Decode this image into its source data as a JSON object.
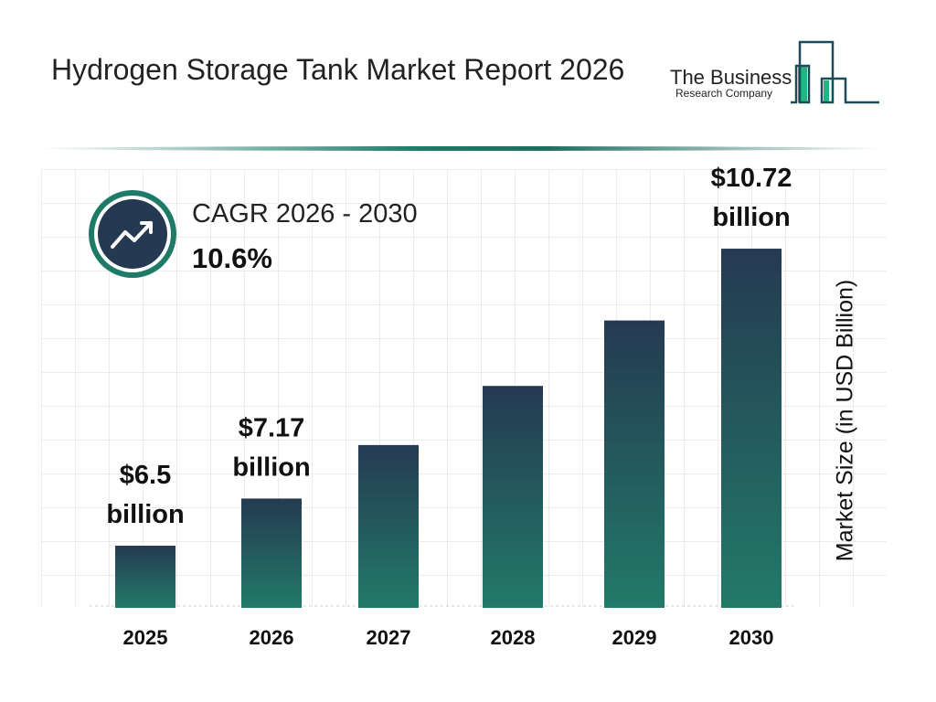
{
  "header": {
    "title": "Hydrogen Storage Tank Market Report 2026"
  },
  "logo": {
    "line1": "The Business",
    "line2": "Research Company"
  },
  "cagr": {
    "label": "CAGR 2026 - 2030",
    "value": "10.6%",
    "icon": "trending-up-icon"
  },
  "colors": {
    "bar_top": "#253a52",
    "bar_bottom": "#227a68",
    "accent": "#1f7a68"
  },
  "chart_data": {
    "type": "bar",
    "title": "Hydrogen Storage Tank Market Report 2026",
    "ylabel": "Market Size (in USD Billion)",
    "xlabel": "",
    "categories": [
      "2025",
      "2026",
      "2027",
      "2028",
      "2029",
      "2030"
    ],
    "values": [
      6.5,
      7.17,
      7.93,
      8.77,
      9.7,
      10.72
    ],
    "data_labels": [
      {
        "index": 0,
        "line1": "$6.5",
        "line2": "billion"
      },
      {
        "index": 1,
        "line1": "$7.17",
        "line2": "billion"
      },
      {
        "index": 5,
        "line1": "$10.72",
        "line2": "billion"
      }
    ],
    "grid": true
  }
}
